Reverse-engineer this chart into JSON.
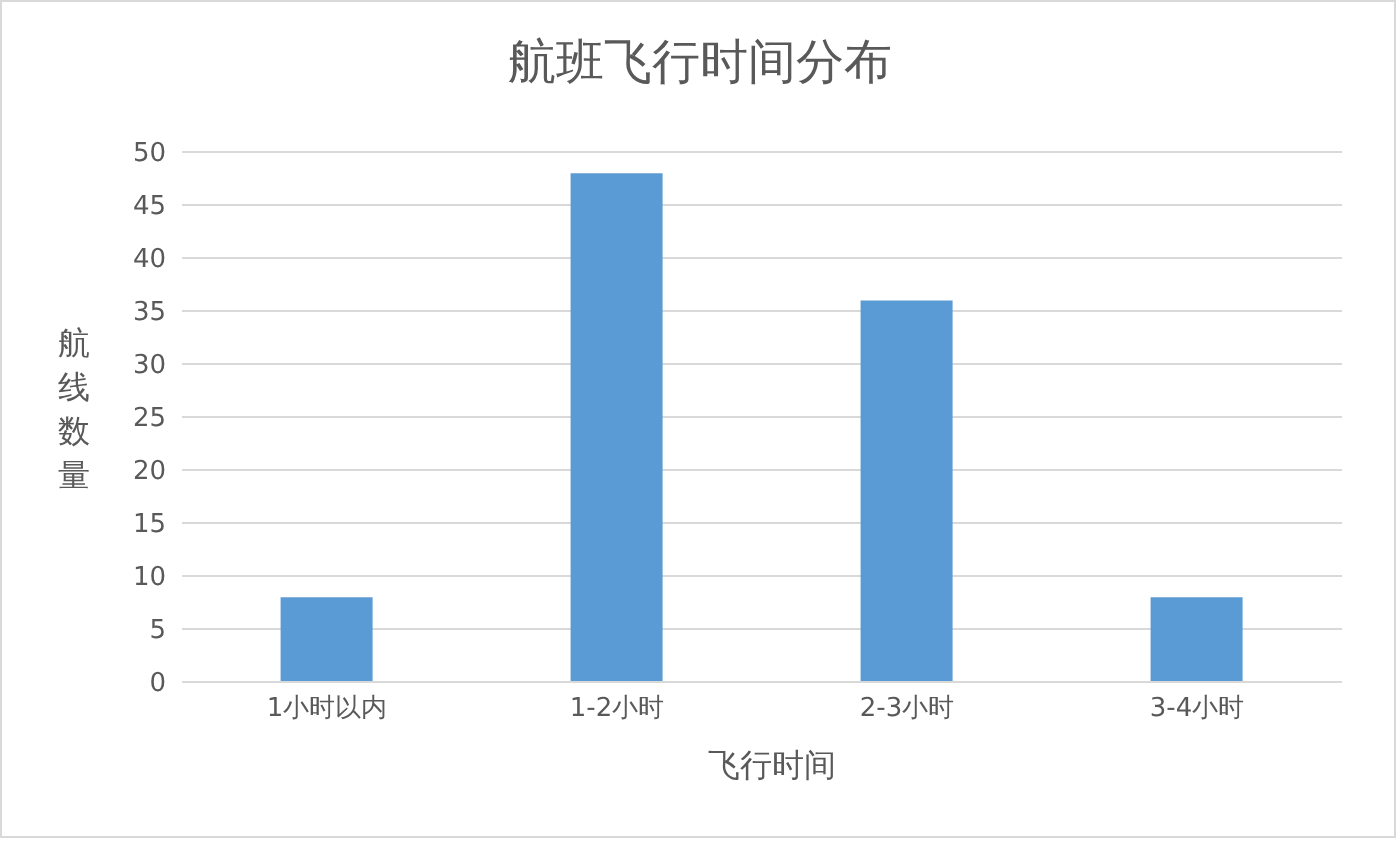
{
  "chart_data": {
    "type": "bar",
    "title": "航班飞行时间分布",
    "xlabel": "飞行时间",
    "ylabel": "航线数量",
    "categories": [
      "1小时以内",
      "1-2小时",
      "2-3小时",
      "3-4小时"
    ],
    "values": [
      8,
      48,
      36,
      8
    ],
    "color": "#5b9bd5",
    "ylim": [
      0,
      50
    ],
    "yticks": [
      0,
      5,
      10,
      15,
      20,
      25,
      30,
      35,
      40,
      45,
      50
    ],
    "grid": "y"
  }
}
